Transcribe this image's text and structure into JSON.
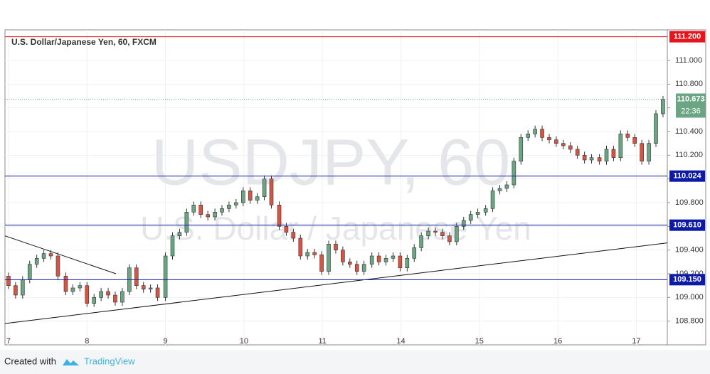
{
  "chart_data": {
    "type": "candlestick",
    "title": "U.S. Dollar/Japanese Yen, 60, FXCM",
    "watermark": "USDJPY, 60",
    "watermark_subtitle": "U.S. Dollar / Japanese Yen",
    "footer": {
      "prefix": "Created with",
      "brand": "TradingView"
    },
    "up_color": "#6ba583",
    "down_color": "#d75442",
    "xlim": [
      -0.045,
      8.395
    ],
    "xticks": [
      {
        "value": 0,
        "label": "7"
      },
      {
        "value": 1,
        "label": "8"
      },
      {
        "value": 2,
        "label": "9"
      },
      {
        "value": 3,
        "label": "10"
      },
      {
        "value": 4,
        "label": "11"
      },
      {
        "value": 5,
        "label": "14"
      },
      {
        "value": 6,
        "label": "15"
      },
      {
        "value": 7,
        "label": "16"
      },
      {
        "value": 8,
        "label": "17"
      }
    ],
    "ylim": [
      108.6,
      111.258
    ],
    "yticks": [
      {
        "value": 108.8,
        "label": "108.800"
      },
      {
        "value": 109,
        "label": "109.000"
      },
      {
        "value": 109.2,
        "label": "109.200"
      },
      {
        "value": 109.4,
        "label": "109.400"
      },
      {
        "value": 109.6,
        "label": "109.600"
      },
      {
        "value": 109.8,
        "label": "109.800"
      },
      {
        "value": 110,
        "label": "110.000"
      },
      {
        "value": 110.2,
        "label": "110.200"
      },
      {
        "value": 110.4,
        "label": "110.400"
      },
      {
        "value": 110.6,
        "label": "110.600"
      },
      {
        "value": 110.8,
        "label": "110.800"
      },
      {
        "value": 111,
        "label": "111.000"
      }
    ],
    "levels": [
      {
        "value": 111.2,
        "label": "111.200",
        "color": "#e8141c"
      },
      {
        "value": 110.024,
        "label": "110.024",
        "color": "#0d1aa8"
      },
      {
        "value": 109.61,
        "label": "109.610",
        "color": "#0d1aa8"
      },
      {
        "value": 109.15,
        "label": "109.150",
        "color": "#0d1aa8"
      }
    ],
    "last_price": {
      "value": 110.673,
      "label": "110.673",
      "countdown": "22:36",
      "color": "#6ba583"
    },
    "trendlines": [
      {
        "x": [
          -0.045,
          8.395
        ],
        "values": [
          108.78,
          109.46
        ]
      },
      {
        "x": [
          -0.045,
          1.37
        ],
        "values": [
          109.52,
          109.2
        ]
      }
    ],
    "x": [
      0,
      0.09,
      0.18,
      0.27,
      0.36,
      0.45,
      0.54,
      0.63,
      0.73,
      0.82,
      0.91,
      1.0,
      1.09,
      1.18,
      1.27,
      1.36,
      1.45,
      1.54,
      1.63,
      1.72,
      1.81,
      1.9,
      2.0,
      2.09,
      2.18,
      2.27,
      2.36,
      2.45,
      2.54,
      2.63,
      2.72,
      2.81,
      2.9,
      2.99,
      3.08,
      3.17,
      3.26,
      3.35,
      3.45,
      3.54,
      3.63,
      3.72,
      3.81,
      3.9,
      3.99,
      4.08,
      4.17,
      4.26,
      4.35,
      4.44,
      4.53,
      4.63,
      4.72,
      4.81,
      4.9,
      4.99,
      5.08,
      5.17,
      5.26,
      5.35,
      5.44,
      5.53,
      5.62,
      5.71,
      5.8,
      5.89,
      5.98,
      6.08,
      6.17,
      6.26,
      6.35,
      6.44,
      6.53,
      6.62,
      6.71,
      6.8,
      6.89,
      6.98,
      7.07,
      7.16,
      7.25,
      7.34,
      7.43,
      7.53,
      7.62,
      7.71,
      7.8,
      7.89,
      7.98,
      8.07,
      8.16,
      8.25,
      8.34
    ],
    "open": [
      109.18,
      109.1,
      109.02,
      109.15,
      109.28,
      109.33,
      109.37,
      109.35,
      109.18,
      109.05,
      109.08,
      109.1,
      108.95,
      109.0,
      109.05,
      109.02,
      108.96,
      109.05,
      109.25,
      109.1,
      109.07,
      109.08,
      109.0,
      109.35,
      109.52,
      109.55,
      109.72,
      109.78,
      109.7,
      109.68,
      109.72,
      109.75,
      109.78,
      109.8,
      109.9,
      109.82,
      109.85,
      110.0,
      109.78,
      109.6,
      109.55,
      109.5,
      109.35,
      109.38,
      109.36,
      109.22,
      109.45,
      109.4,
      109.3,
      109.28,
      109.22,
      109.28,
      109.35,
      109.3,
      109.33,
      109.35,
      109.25,
      109.33,
      109.42,
      109.52,
      109.56,
      109.55,
      109.52,
      109.47,
      109.6,
      109.65,
      109.7,
      109.72,
      109.75,
      109.9,
      109.92,
      109.95,
      110.15,
      110.35,
      110.38,
      110.42,
      110.35,
      110.33,
      110.3,
      110.28,
      110.25,
      110.2,
      110.16,
      110.18,
      110.15,
      110.25,
      110.18,
      110.38,
      110.35,
      110.3,
      110.15,
      110.3,
      110.55
    ],
    "high": [
      109.21,
      109.13,
      109.18,
      109.31,
      109.36,
      109.4,
      109.4,
      109.38,
      109.21,
      109.11,
      109.13,
      109.13,
      109.03,
      109.08,
      109.08,
      109.05,
      109.08,
      109.28,
      109.28,
      109.13,
      109.11,
      109.11,
      109.38,
      109.55,
      109.58,
      109.75,
      109.81,
      109.81,
      109.73,
      109.75,
      109.78,
      109.81,
      109.83,
      109.93,
      109.93,
      109.88,
      110.03,
      110.03,
      109.81,
      109.63,
      109.58,
      109.53,
      109.41,
      109.41,
      109.39,
      109.48,
      109.48,
      109.43,
      109.33,
      109.31,
      109.31,
      109.38,
      109.38,
      109.36,
      109.38,
      109.38,
      109.36,
      109.45,
      109.55,
      109.59,
      109.59,
      109.58,
      109.55,
      109.63,
      109.68,
      109.73,
      109.75,
      109.78,
      109.93,
      109.95,
      109.98,
      110.18,
      110.38,
      110.41,
      110.45,
      110.45,
      110.38,
      110.36,
      110.33,
      110.31,
      110.28,
      110.23,
      110.21,
      110.21,
      110.28,
      110.28,
      110.41,
      110.41,
      110.38,
      110.33,
      110.33,
      110.58,
      110.7
    ],
    "low": [
      109.07,
      108.99,
      108.99,
      109.12,
      109.25,
      109.3,
      109.32,
      109.15,
      109.02,
      109.02,
      109.05,
      108.92,
      108.92,
      108.97,
      108.99,
      108.93,
      108.93,
      109.02,
      109.07,
      109.04,
      109.04,
      108.97,
      108.97,
      109.32,
      109.49,
      109.52,
      109.69,
      109.67,
      109.65,
      109.65,
      109.69,
      109.72,
      109.75,
      109.77,
      109.79,
      109.79,
      109.82,
      109.75,
      109.57,
      109.52,
      109.47,
      109.32,
      109.32,
      109.33,
      109.19,
      109.19,
      109.37,
      109.27,
      109.25,
      109.19,
      109.19,
      109.25,
      109.27,
      109.27,
      109.3,
      109.22,
      109.22,
      109.3,
      109.39,
      109.49,
      109.52,
      109.49,
      109.44,
      109.44,
      109.57,
      109.62,
      109.67,
      109.69,
      109.72,
      109.87,
      109.89,
      109.92,
      110.12,
      110.32,
      110.35,
      110.32,
      110.3,
      110.27,
      110.25,
      110.22,
      110.17,
      110.13,
      110.13,
      110.12,
      110.12,
      110.15,
      110.15,
      110.32,
      110.27,
      110.12,
      110.12,
      110.27,
      110.52
    ],
    "close": [
      109.1,
      109.02,
      109.15,
      109.28,
      109.33,
      109.37,
      109.35,
      109.18,
      109.05,
      109.08,
      109.1,
      108.95,
      109.0,
      109.05,
      109.02,
      108.96,
      109.05,
      109.25,
      109.1,
      109.07,
      109.08,
      109.0,
      109.35,
      109.52,
      109.55,
      109.72,
      109.78,
      109.7,
      109.68,
      109.72,
      109.75,
      109.78,
      109.8,
      109.9,
      109.82,
      109.85,
      110.0,
      109.78,
      109.6,
      109.55,
      109.5,
      109.35,
      109.38,
      109.36,
      109.22,
      109.45,
      109.4,
      109.3,
      109.28,
      109.22,
      109.28,
      109.35,
      109.3,
      109.33,
      109.35,
      109.25,
      109.33,
      109.42,
      109.52,
      109.56,
      109.55,
      109.52,
      109.47,
      109.6,
      109.65,
      109.7,
      109.72,
      109.75,
      109.9,
      109.92,
      109.95,
      110.15,
      110.35,
      110.38,
      110.42,
      110.35,
      110.33,
      110.3,
      110.28,
      110.25,
      110.2,
      110.16,
      110.18,
      110.15,
      110.25,
      110.18,
      110.38,
      110.35,
      110.3,
      110.15,
      110.3,
      110.55,
      110.673
    ]
  }
}
